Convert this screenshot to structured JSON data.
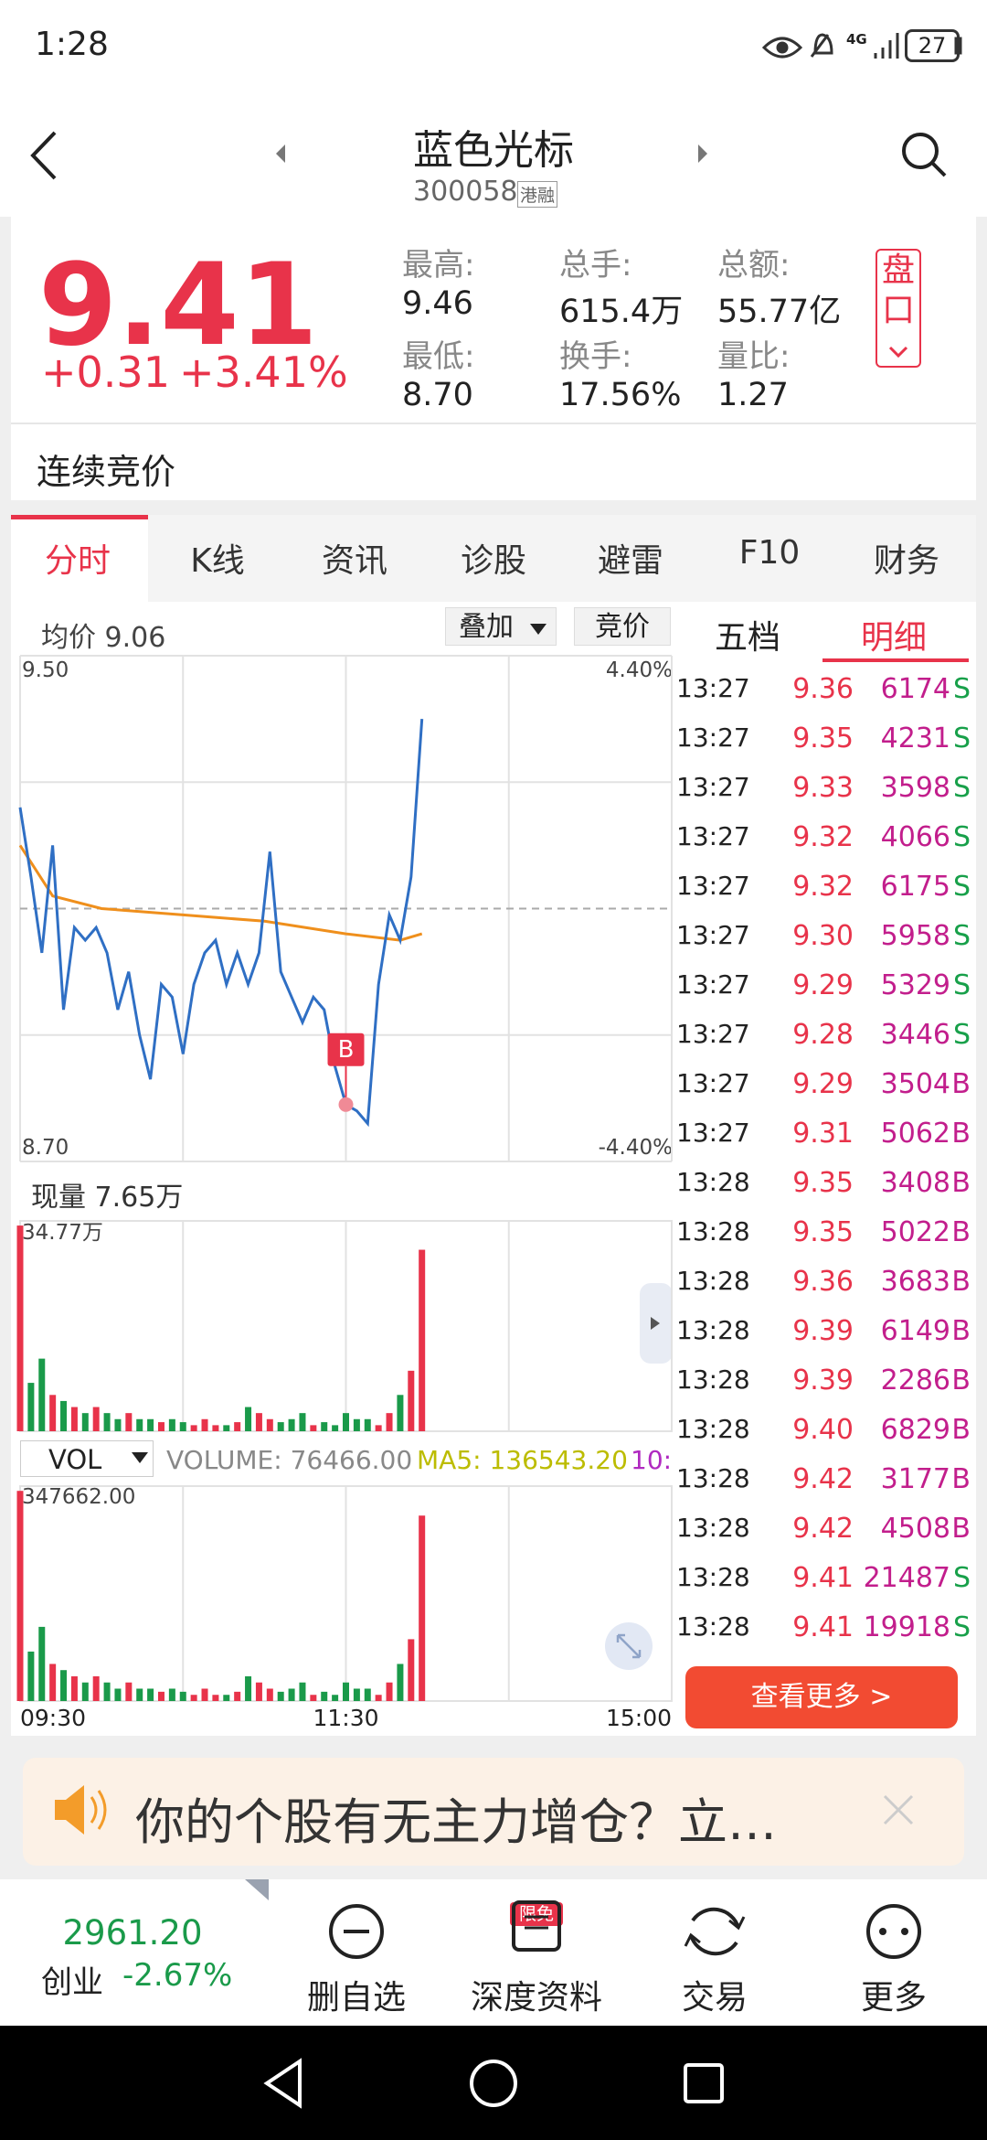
{
  "status_bar": {
    "time": "1:28",
    "network": "4G",
    "battery": "27"
  },
  "header": {
    "title": "蓝色光标",
    "code": "300058",
    "badge": "港融"
  },
  "quote": {
    "price": "9.41",
    "change": "+0.31",
    "change_pct": "+3.41%",
    "panel_button": "盘口",
    "stats": [
      {
        "label": "最高:",
        "value": "9.46"
      },
      {
        "label": "总手:",
        "value": "615.4万"
      },
      {
        "label": "总额:",
        "value": "55.77亿"
      },
      {
        "label": "最低:",
        "value": "8.70"
      },
      {
        "label": "换手:",
        "value": "17.56%"
      },
      {
        "label": "量比:",
        "value": "1.27"
      }
    ]
  },
  "trading_status": "连续竞价",
  "tabs": [
    "分时",
    "K线",
    "资讯",
    "诊股",
    "避雷",
    "F10",
    "财务"
  ],
  "chart_data": {
    "type": "line",
    "avg_label": "均价 9.06",
    "overlay_button": "叠加",
    "auction_button": "竞价",
    "x": [
      0,
      4,
      8,
      12,
      16,
      20,
      24,
      28,
      32,
      36,
      40,
      44,
      48,
      52,
      56,
      60,
      64,
      68,
      72,
      76,
      80,
      84,
      88,
      92,
      96,
      100,
      104,
      108,
      112,
      116,
      120,
      124,
      128,
      132,
      136,
      140,
      144,
      148
    ],
    "values": [
      9.26,
      9.15,
      9.03,
      9.2,
      8.94,
      9.07,
      9.05,
      9.07,
      9.03,
      8.94,
      9.0,
      8.9,
      8.83,
      8.98,
      8.96,
      8.87,
      8.98,
      9.03,
      9.05,
      8.98,
      9.03,
      8.98,
      9.03,
      9.19,
      9.0,
      8.96,
      8.92,
      8.96,
      8.94,
      8.85,
      8.79,
      8.78,
      8.76,
      8.98,
      9.09,
      9.05,
      9.15,
      9.4
    ],
    "color": "#2f6fc4",
    "avg_x": [
      0,
      12,
      30,
      60,
      90,
      120,
      140,
      148
    ],
    "avg_values": [
      9.2,
      9.12,
      9.1,
      9.09,
      9.08,
      9.06,
      9.05,
      9.06
    ],
    "avg_color": "#ef8f1c",
    "ylim": [
      8.7,
      9.5
    ],
    "yticks": [
      {
        "value": 9.5,
        "label": "9.50"
      },
      {
        "value": 8.7,
        "label": "8.70"
      }
    ],
    "pct_labels": [
      "4.40%",
      "-4.40%"
    ],
    "ygrid": [
      9.5,
      9.3,
      8.9,
      8.7
    ],
    "prev_close": 9.1,
    "xlim": [
      0,
      240
    ],
    "xticks": [
      {
        "value": 0,
        "label": "09:30"
      },
      {
        "value": 120,
        "label": "11:30"
      },
      {
        "value": 240,
        "label": "15:00"
      }
    ],
    "xgrid": [
      0,
      60,
      120,
      180,
      240
    ],
    "buy_marker": {
      "label": "B",
      "x": 120,
      "value": 8.79
    },
    "volume_label": "现量 7.65万",
    "volume_max_label": "34.77万",
    "volume": [
      34,
      8,
      12,
      6,
      5,
      4,
      3,
      4,
      3,
      2,
      3,
      2,
      2,
      1.5,
      2,
      1.5,
      1,
      2,
      1,
      1,
      1.5,
      4,
      3,
      2,
      1.5,
      2,
      3,
      1,
      1.5,
      1,
      3,
      2,
      2,
      1,
      3,
      6,
      10,
      30
    ],
    "volume_ylim": [
      0,
      34.77
    ],
    "indicator": "VOL",
    "indicator_volume": "VOLUME: 76466.00",
    "indicator_ma5": "MA5: 136543.20",
    "indicator_ma10": "10:",
    "indicator_max_label": "347662.00"
  },
  "detail": {
    "tabs": [
      "五档",
      "明细"
    ],
    "more_button": "查看更多 >",
    "rows": [
      [
        "13:27",
        "9.36",
        "6174",
        "S"
      ],
      [
        "13:27",
        "9.35",
        "4231",
        "S"
      ],
      [
        "13:27",
        "9.33",
        "3598",
        "S"
      ],
      [
        "13:27",
        "9.32",
        "4066",
        "S"
      ],
      [
        "13:27",
        "9.32",
        "6175",
        "S"
      ],
      [
        "13:27",
        "9.30",
        "5958",
        "S"
      ],
      [
        "13:27",
        "9.29",
        "5329",
        "S"
      ],
      [
        "13:27",
        "9.28",
        "3446",
        "S"
      ],
      [
        "13:27",
        "9.29",
        "3504",
        "B"
      ],
      [
        "13:27",
        "9.31",
        "5062",
        "B"
      ],
      [
        "13:28",
        "9.35",
        "3408",
        "B"
      ],
      [
        "13:28",
        "9.35",
        "5022",
        "B"
      ],
      [
        "13:28",
        "9.36",
        "3683",
        "B"
      ],
      [
        "13:28",
        "9.39",
        "6149",
        "B"
      ],
      [
        "13:28",
        "9.39",
        "2286",
        "B"
      ],
      [
        "13:28",
        "9.40",
        "6829",
        "B"
      ],
      [
        "13:28",
        "9.42",
        "3177",
        "B"
      ],
      [
        "13:28",
        "9.42",
        "4508",
        "B"
      ],
      [
        "13:28",
        "9.41",
        "21487",
        "S"
      ],
      [
        "13:28",
        "9.41",
        "19918",
        "S"
      ]
    ]
  },
  "banner": {
    "text": "你的个股有无主力增仓？立…"
  },
  "footer": {
    "index_value": "2961.20",
    "index_name": "创业",
    "index_change": "-2.67%",
    "buttons": [
      "删自选",
      "深度资料",
      "交易",
      "更多"
    ],
    "badge": "限免"
  }
}
